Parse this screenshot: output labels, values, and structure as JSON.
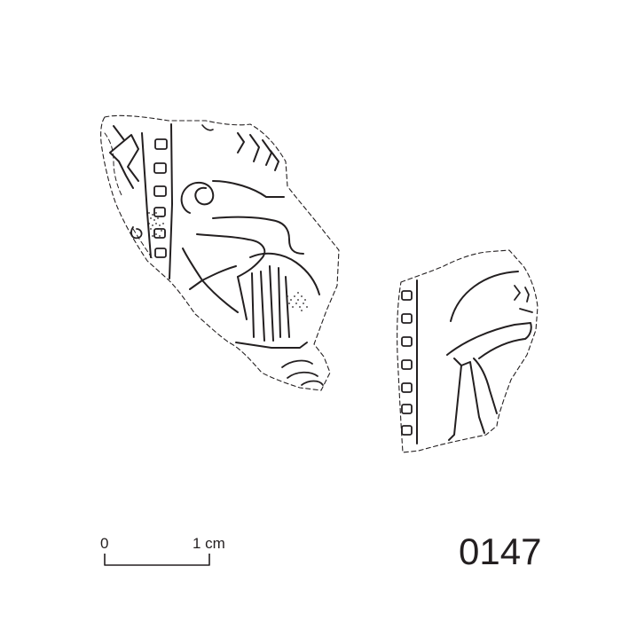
{
  "figure": {
    "catalogue_number": "0147",
    "ink_color": "#231f20",
    "background_color": "#ffffff"
  },
  "scale_bar": {
    "start_label": "0",
    "end_label": "1 cm"
  }
}
